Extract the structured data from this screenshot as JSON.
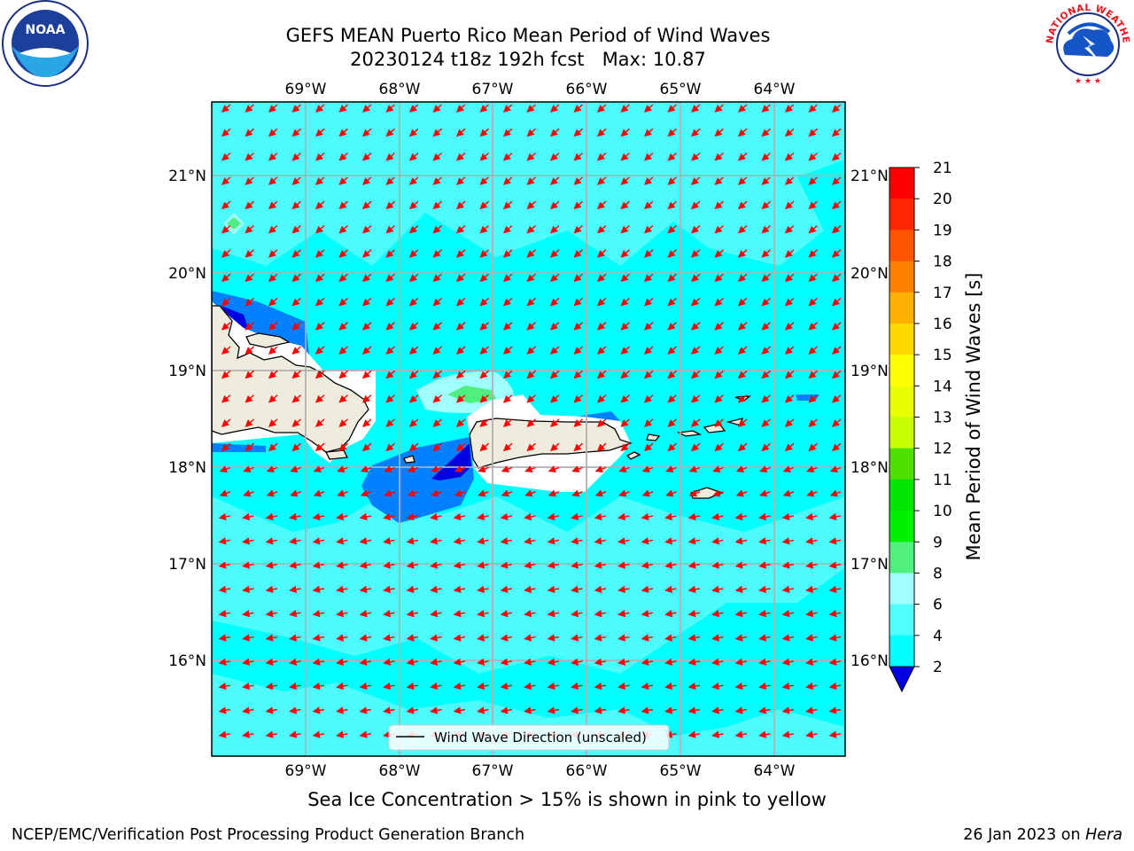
{
  "header": {
    "title_line1": "GEFS MEAN Puerto Rico Mean Period of Wind Waves",
    "title_line2": "20230124 t18z 192h fcst   Max: 10.87"
  },
  "logos": {
    "left": "noaa-logo",
    "right": "national-weather-service-logo",
    "left_text": "NOAA",
    "left_ring_text": "NATIONAL OCEANIC AND ATMOSPHERIC ADMINISTRATION · U.S. DEPARTMENT OF COMMERCE",
    "right_ring_text": "NATIONAL WEATHER SERVICE"
  },
  "map": {
    "lon_labels": [
      "69°W",
      "68°W",
      "67°W",
      "66°W",
      "65°W",
      "64°W"
    ],
    "lat_labels": [
      "21°N",
      "20°N",
      "19°N",
      "18°N",
      "17°N",
      "16°N"
    ],
    "lon_range": [
      -70.0,
      -63.25
    ],
    "lat_range": [
      15.0,
      21.75
    ],
    "grid": true,
    "legend_label": "Wind Wave Direction (unscaled)",
    "legend_position": "bottom-center",
    "wind_direction": "toward southwest",
    "colors": {
      "ocean_main": "#00ffff",
      "ocean_light": "#4dfcfc",
      "land": "#eeecdc",
      "arrow": "#ff0000",
      "gridline": "#b0b0b0"
    }
  },
  "colorbar": {
    "label": "Mean Period of Wind Waves [s]",
    "ticks": [
      "21",
      "20",
      "19",
      "18",
      "17",
      "16",
      "15",
      "14",
      "13",
      "12",
      "11",
      "10",
      "9",
      "8",
      "6",
      "4",
      "2"
    ],
    "colors": [
      "#ff0000",
      "#ff2600",
      "#ff5400",
      "#ff8000",
      "#ffb000",
      "#ffd800",
      "#ffff00",
      "#e8ff00",
      "#c8ff00",
      "#50e000",
      "#00e400",
      "#00f000",
      "#50f080",
      "#a0ffff",
      "#50ffff",
      "#00ffff",
      "#0080ff",
      "#0000e0"
    ],
    "extend": "min"
  },
  "footer": {
    "note": "Sea Ice Concentration > 15% is shown in pink to yellow",
    "credit": "NCEP/EMC/Verification Post Processing Product Generation Branch",
    "date_prefix": "26 Jan 2023 on ",
    "date_machine": "Hera"
  }
}
